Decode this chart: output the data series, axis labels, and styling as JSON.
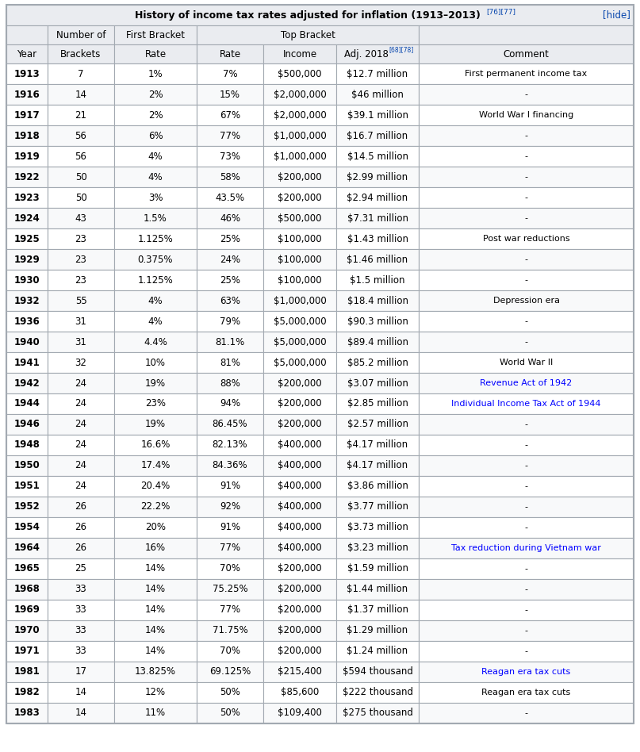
{
  "title": "History of income tax rates adjusted for inflation (1913–2013)",
  "title_superscript": "[76][77]",
  "hide_text": "[hide]",
  "rows": [
    [
      "1913",
      "7",
      "1%",
      "7%",
      "$500,000",
      "$12.7 million",
      "First permanent income tax",
      "black"
    ],
    [
      "1916",
      "14",
      "2%",
      "15%",
      "$2,000,000",
      "$46 million",
      "-",
      "black"
    ],
    [
      "1917",
      "21",
      "2%",
      "67%",
      "$2,000,000",
      "$39.1 million",
      "World War I financing",
      "black"
    ],
    [
      "1918",
      "56",
      "6%",
      "77%",
      "$1,000,000",
      "$16.7 million",
      "-",
      "black"
    ],
    [
      "1919",
      "56",
      "4%",
      "73%",
      "$1,000,000",
      "$14.5 million",
      "-",
      "black"
    ],
    [
      "1922",
      "50",
      "4%",
      "58%",
      "$200,000",
      "$2.99 million",
      "-",
      "black"
    ],
    [
      "1923",
      "50",
      "3%",
      "43.5%",
      "$200,000",
      "$2.94 million",
      "-",
      "black"
    ],
    [
      "1924",
      "43",
      "1.5%",
      "46%",
      "$500,000",
      "$7.31 million",
      "-",
      "black"
    ],
    [
      "1925",
      "23",
      "1.125%",
      "25%",
      "$100,000",
      "$1.43 million",
      "Post war reductions",
      "black"
    ],
    [
      "1929",
      "23",
      "0.375%",
      "24%",
      "$100,000",
      "$1.46 million",
      "-",
      "black"
    ],
    [
      "1930",
      "23",
      "1.125%",
      "25%",
      "$100,000",
      "$1.5 million",
      "-",
      "black"
    ],
    [
      "1932",
      "55",
      "4%",
      "63%",
      "$1,000,000",
      "$18.4 million",
      "Depression era",
      "black"
    ],
    [
      "1936",
      "31",
      "4%",
      "79%",
      "$5,000,000",
      "$90.3 million",
      "-",
      "black"
    ],
    [
      "1940",
      "31",
      "4.4%",
      "81.1%",
      "$5,000,000",
      "$89.4 million",
      "-",
      "black"
    ],
    [
      "1941",
      "32",
      "10%",
      "81%",
      "$5,000,000",
      "$85.2 million",
      "World War II",
      "black"
    ],
    [
      "1942",
      "24",
      "19%",
      "88%",
      "$200,000",
      "$3.07 million",
      "Revenue Act of 1942",
      "blue"
    ],
    [
      "1944",
      "24",
      "23%",
      "94%",
      "$200,000",
      "$2.85 million",
      "Individual Income Tax Act of 1944",
      "blue"
    ],
    [
      "1946",
      "24",
      "19%",
      "86.45%",
      "$200,000",
      "$2.57 million",
      "-",
      "black"
    ],
    [
      "1948",
      "24",
      "16.6%",
      "82.13%",
      "$400,000",
      "$4.17 million",
      "-",
      "black"
    ],
    [
      "1950",
      "24",
      "17.4%",
      "84.36%",
      "$400,000",
      "$4.17 million",
      "-",
      "black"
    ],
    [
      "1951",
      "24",
      "20.4%",
      "91%",
      "$400,000",
      "$3.86 million",
      "-",
      "black"
    ],
    [
      "1952",
      "26",
      "22.2%",
      "92%",
      "$400,000",
      "$3.77 million",
      "-",
      "black"
    ],
    [
      "1954",
      "26",
      "20%",
      "91%",
      "$400,000",
      "$3.73 million",
      "-",
      "black"
    ],
    [
      "1964",
      "26",
      "16%",
      "77%",
      "$400,000",
      "$3.23 million",
      "Tax reduction during Vietnam war",
      "blue"
    ],
    [
      "1965",
      "25",
      "14%",
      "70%",
      "$200,000",
      "$1.59 million",
      "-",
      "black"
    ],
    [
      "1968",
      "33",
      "14%",
      "75.25%",
      "$200,000",
      "$1.44 million",
      "-",
      "black"
    ],
    [
      "1969",
      "33",
      "14%",
      "77%",
      "$200,000",
      "$1.37 million",
      "-",
      "black"
    ],
    [
      "1970",
      "33",
      "14%",
      "71.75%",
      "$200,000",
      "$1.29 million",
      "-",
      "black"
    ],
    [
      "1971",
      "33",
      "14%",
      "70%",
      "$200,000",
      "$1.24 million",
      "-",
      "black"
    ],
    [
      "1981",
      "17",
      "13.825%",
      "69.125%",
      "$215,400",
      "$594 thousand",
      "Reagan era tax cuts",
      "blue"
    ],
    [
      "1982",
      "14",
      "12%",
      "50%",
      "$85,600",
      "$222 thousand",
      "Reagan era tax cuts",
      "black"
    ],
    [
      "1983",
      "14",
      "11%",
      "50%",
      "$109,400",
      "$275 thousand",
      "-",
      "black"
    ]
  ],
  "header_bg": "#eaecf0",
  "row_bg_light": "#ffffff",
  "row_bg_dark": "#f8f9fa",
  "border_color": "#a2a9b1",
  "title_bg": "#eaecf0",
  "figsize": [
    8.07,
    9.48
  ],
  "dpi": 100
}
